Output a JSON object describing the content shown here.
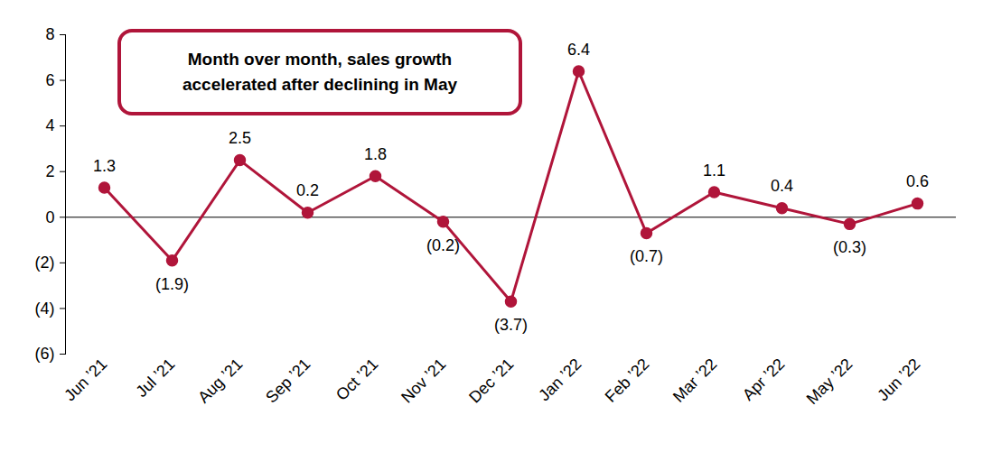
{
  "chart_data": {
    "type": "line",
    "annotation": "Month over month, sales growth\naccelerated after declining in May",
    "categories": [
      "Jun ’21",
      "Jul ’21",
      "Aug ’21",
      "Sep ’21",
      "Oct ’21",
      "Nov ’21",
      "Dec ’21",
      "Jan ’22",
      "Feb ’22",
      "Mar ’22",
      "Apr ’22",
      "May ’22",
      "Jun ’22"
    ],
    "values": [
      1.3,
      -1.9,
      2.5,
      0.2,
      1.8,
      -0.2,
      -3.7,
      6.4,
      -0.7,
      1.1,
      0.4,
      -0.3,
      0.6
    ],
    "value_labels": [
      "1.3",
      "(1.9)",
      "2.5",
      "0.2",
      "1.8",
      "(0.2)",
      "(3.7)",
      "6.4",
      "(0.7)",
      "1.1",
      "0.4",
      "(0.3)",
      "0.6"
    ],
    "color": "#b0153a",
    "marker": "circle",
    "line_style": "solid",
    "data_labels": true,
    "grid": false,
    "ylim": [
      -6,
      8
    ],
    "yticks": [
      {
        "value": -6,
        "label": "(6)"
      },
      {
        "value": -4,
        "label": "(4)"
      },
      {
        "value": -2,
        "label": "(2)"
      },
      0,
      2,
      4,
      6,
      8
    ]
  }
}
